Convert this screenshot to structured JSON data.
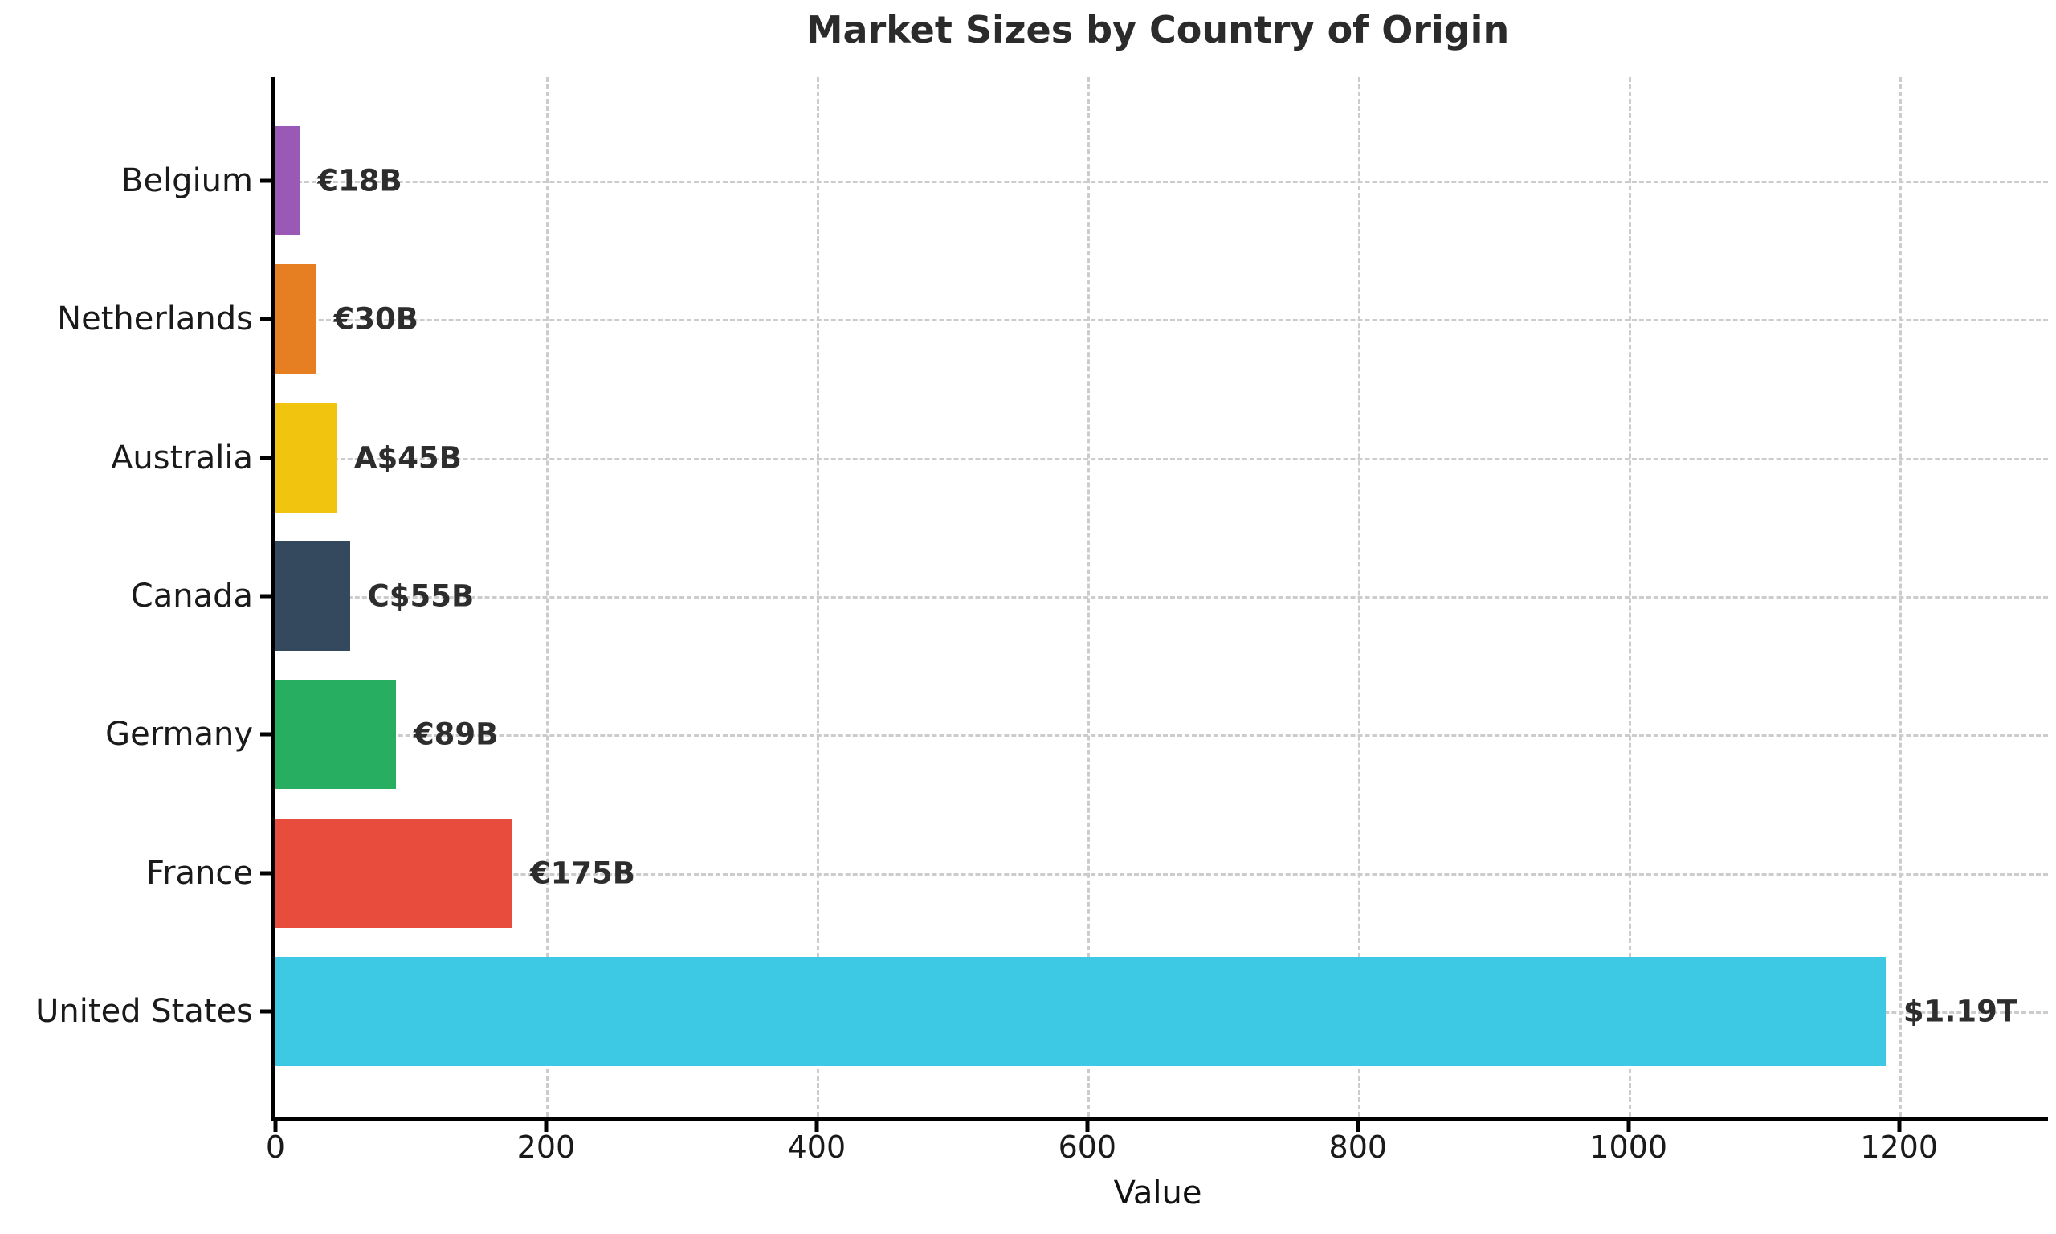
{
  "chart_data": {
    "type": "bar",
    "orientation": "horizontal",
    "title": "Market Sizes by Country of Origin",
    "xlabel": "Value",
    "ylabel": "",
    "categories": [
      "Belgium",
      "Netherlands",
      "Australia",
      "Canada",
      "Germany",
      "France",
      "United States"
    ],
    "values": [
      18,
      30,
      45,
      55,
      89,
      175,
      1190
    ],
    "bar_labels": [
      "€18B",
      "€30B",
      "A$45B",
      "C$55B",
      "€89B",
      "€175B",
      "$1.19T"
    ],
    "bar_colors": [
      "#9b59b6",
      "#e67e22",
      "#f1c40f",
      "#34495e",
      "#27ae60",
      "#e74c3c",
      "#3dc8e3"
    ],
    "x_tick_labels": [
      "0",
      "200",
      "400",
      "600",
      "800",
      "1000",
      "1200"
    ],
    "x_tick_values": [
      0,
      200,
      400,
      600,
      800,
      1000,
      1200
    ],
    "xlim": [
      0,
      1310
    ],
    "grid": "dashed horizontal and vertical",
    "legend_position": "none"
  },
  "colors": {
    "background": "#ffffff",
    "title_text": "#2b2b2b",
    "axis_text": "#1a1a1a",
    "value_label_text": "#2d2d2d",
    "gridline": "#cccccc",
    "spine": "#000000"
  }
}
